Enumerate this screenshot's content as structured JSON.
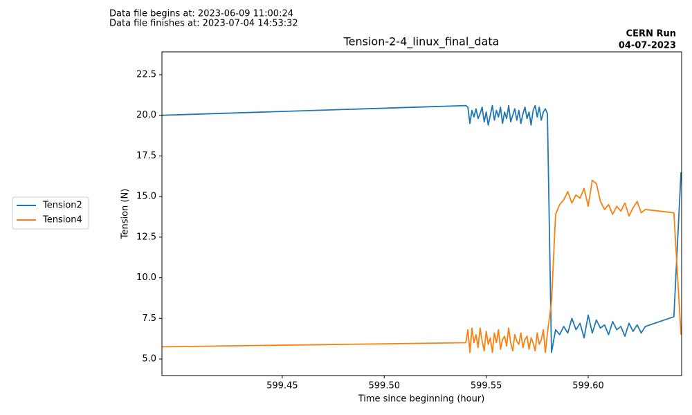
{
  "chart_data": {
    "type": "line",
    "title": "Tension-2-4_linux_final_data",
    "header_lines": [
      "Data file begins at: 2023-06-09 11:00:24",
      "Data file finishes at: 2023-07-04 14:53:32"
    ],
    "run_label": [
      "CERN Run",
      "04-07-2023"
    ],
    "xlabel": "Time since beginning (hour)",
    "ylabel": "Tension (N)",
    "xlim": [
      599.391,
      599.6458
    ],
    "ylim": [
      3.978,
      23.905
    ],
    "xticks": [
      599.45,
      {
        "value": 599.5,
        "label": "599.50"
      },
      599.55,
      {
        "value": 599.6,
        "label": "599.60"
      }
    ],
    "yticks": [
      {
        "value": 5,
        "label": "5.0"
      },
      7.5,
      {
        "value": 10,
        "label": "10.0"
      },
      12.5,
      {
        "value": 15,
        "label": "15.0"
      },
      17.5,
      {
        "value": 20,
        "label": "20.0"
      },
      22.5
    ],
    "grid": false,
    "legend_position": "left",
    "x": [
      599.391,
      599.54,
      599.541,
      599.542,
      599.543,
      599.544,
      599.545,
      599.546,
      599.547,
      599.548,
      599.549,
      599.55,
      599.551,
      599.552,
      599.553,
      599.554,
      599.555,
      599.556,
      599.557,
      599.558,
      599.559,
      599.56,
      599.561,
      599.562,
      599.563,
      599.564,
      599.565,
      599.566,
      599.567,
      599.568,
      599.569,
      599.57,
      599.571,
      599.572,
      599.573,
      599.574,
      599.575,
      599.576,
      599.577,
      599.578,
      599.579,
      599.58,
      599.582,
      599.584,
      599.586,
      599.588,
      599.59,
      599.592,
      599.594,
      599.596,
      599.598,
      599.6,
      599.602,
      599.604,
      599.606,
      599.608,
      599.61,
      599.612,
      599.614,
      599.616,
      599.618,
      599.62,
      599.622,
      599.624,
      599.626,
      599.628,
      599.642,
      599.6455
    ],
    "series": [
      {
        "name": "Tension2",
        "color": "#1f77b4",
        "values": [
          20.0,
          20.6,
          20.5,
          19.5,
          20.3,
          19.9,
          20.4,
          19.8,
          20.1,
          20.5,
          19.6,
          20.2,
          19.4,
          20.0,
          20.6,
          19.7,
          20.3,
          19.9,
          20.5,
          19.5,
          20.2,
          19.8,
          20.6,
          19.6,
          20.0,
          20.4,
          19.7,
          20.3,
          19.5,
          20.1,
          20.5,
          19.8,
          20.2,
          19.4,
          20.3,
          20.6,
          19.9,
          20.5,
          19.7,
          20.2,
          20.4,
          20.1,
          5.4,
          6.8,
          6.5,
          7.0,
          6.6,
          7.5,
          6.8,
          7.2,
          6.3,
          7.7,
          6.6,
          7.4,
          6.9,
          7.1,
          6.5,
          7.3,
          6.8,
          7.0,
          6.4,
          7.2,
          6.7,
          7.1,
          6.6,
          7.0,
          7.6,
          16.5
        ]
      },
      {
        "name": "Tension4",
        "color": "#ff7f0e",
        "values": [
          5.75,
          6.0,
          6.8,
          5.4,
          6.9,
          6.0,
          6.5,
          5.7,
          6.9,
          6.1,
          5.5,
          6.7,
          5.9,
          6.3,
          5.4,
          6.6,
          6.0,
          6.8,
          5.6,
          6.2,
          6.4,
          5.8,
          6.9,
          6.0,
          5.5,
          6.5,
          6.1,
          5.9,
          6.6,
          5.7,
          6.2,
          6.4,
          5.6,
          6.3,
          6.0,
          5.5,
          6.6,
          5.9,
          6.2,
          6.8,
          5.4,
          6.6,
          8.5,
          13.9,
          14.5,
          14.8,
          15.3,
          14.6,
          15.1,
          14.9,
          15.5,
          14.4,
          16.0,
          15.8,
          14.7,
          14.2,
          14.5,
          13.9,
          14.4,
          14.1,
          14.6,
          13.8,
          14.3,
          14.7,
          14.0,
          14.2,
          14.0,
          6.5
        ]
      }
    ]
  }
}
